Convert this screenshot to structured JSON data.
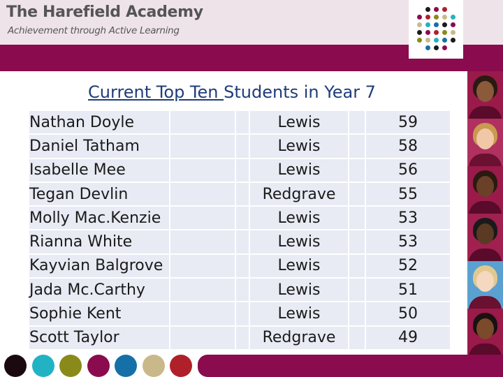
{
  "header": {
    "school_name": "The Harefield Academy",
    "tagline": "Achievement through Active Learning"
  },
  "colors": {
    "brand": "#8b0b4f",
    "header_bg": "#efe3ea",
    "title": "#1f3d7a",
    "table_cell": "#e8ebf4"
  },
  "title": {
    "underlined_part": "Current Top Ten ",
    "rest": "Students in Year 7"
  },
  "table": {
    "rows": [
      {
        "name": "Nathan Doyle",
        "house": "Lewis",
        "score": "59"
      },
      {
        "name": "Daniel Tatham",
        "house": "Lewis",
        "score": "58"
      },
      {
        "name": "Isabelle Mee",
        "house": "Lewis",
        "score": "56"
      },
      {
        "name": "Tegan Devlin",
        "house": "Redgrave",
        "score": "55"
      },
      {
        "name": "Molly Mac.Kenzie",
        "house": "Lewis",
        "score": "53"
      },
      {
        "name": "Rianna White",
        "house": "Lewis",
        "score": "53"
      },
      {
        "name": "Kayvian Balgrove",
        "house": "Lewis",
        "score": "52"
      },
      {
        "name": "Jada Mc.Carthy",
        "house": "Lewis",
        "score": "51"
      },
      {
        "name": "Sophie Kent",
        "house": "Lewis",
        "score": "50"
      },
      {
        "name": "Scott Taylor",
        "house": "Redgrave",
        "score": "49"
      }
    ]
  },
  "logo": {
    "dot_colors": [
      "#1b1b1b",
      "#21b3c4",
      "#8a8a1a",
      "#8b0b4f",
      "#1670a8",
      "#c9b98a",
      "#b0202a"
    ]
  },
  "footer": {
    "dot_colors": [
      "#1a0a10",
      "#21b3c4",
      "#8a8a1a",
      "#8b0b4f",
      "#1670a8",
      "#c9b98a",
      "#b0202a"
    ]
  },
  "photos": [
    {
      "bg": "#9a1a4a",
      "hair": "#2b1a12",
      "face": "#8a5a3a",
      "shirt": "#5a0a2a"
    },
    {
      "bg": "#b03060",
      "hair": "#c99a50",
      "face": "#f0c8a8",
      "shirt": "#6a1030"
    },
    {
      "bg": "#9a1a4a",
      "hair": "#2a1a10",
      "face": "#6a4028",
      "shirt": "#5a0a2a"
    },
    {
      "bg": "#a02050",
      "hair": "#1a1a1a",
      "face": "#5a3a22",
      "shirt": "#5a0a2a"
    },
    {
      "bg": "#5aa0d0",
      "hair": "#e0c890",
      "face": "#f5d8c0",
      "shirt": "#6a1030"
    },
    {
      "bg": "#9a1a4a",
      "hair": "#1a1010",
      "face": "#7a4a2a",
      "shirt": "#5a0a2a"
    }
  ]
}
